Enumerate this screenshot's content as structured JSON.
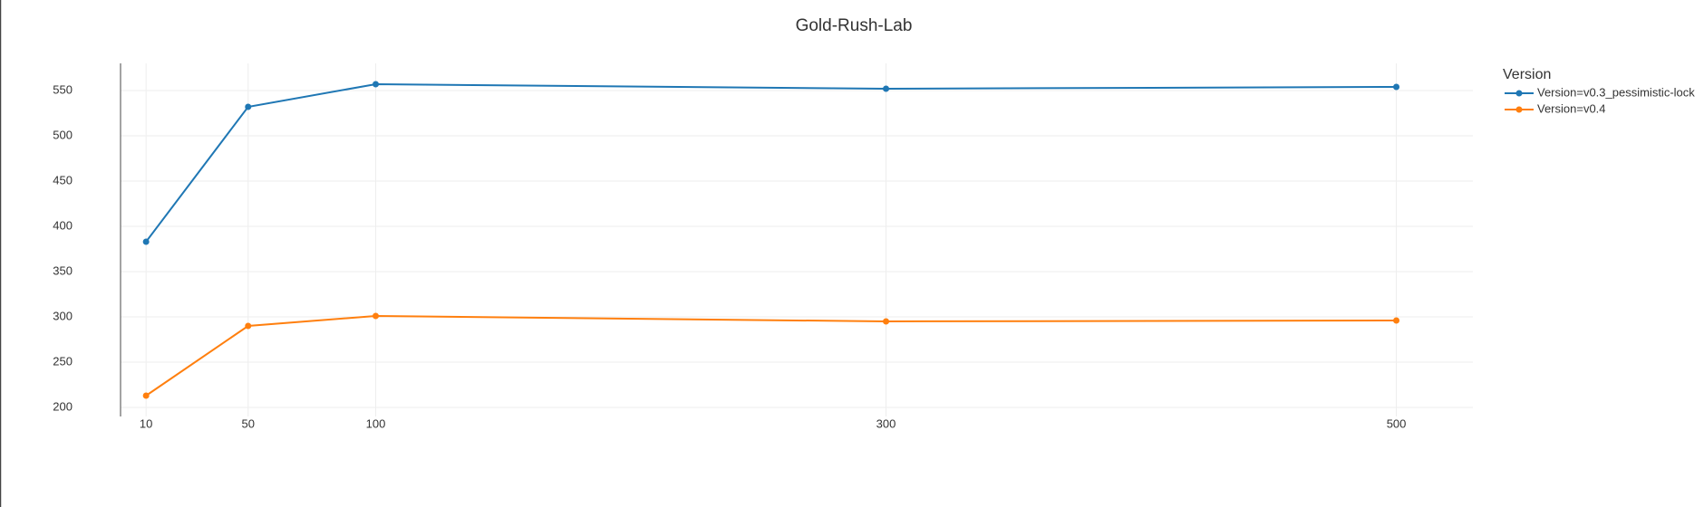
{
  "chart_data": {
    "type": "line",
    "title": "Gold-Rush-Lab",
    "x": [
      10,
      50,
      100,
      300,
      500
    ],
    "series": [
      {
        "name": "Version=v0.3_pessimistic-lock",
        "color": "#1f77b4",
        "values": [
          383,
          532,
          557,
          552,
          554
        ]
      },
      {
        "name": "Version=v0.4",
        "color": "#ff7f0e",
        "values": [
          213,
          290,
          301,
          295,
          296
        ]
      }
    ],
    "legend_title": "Version",
    "legend": "right",
    "xlim": [
      0,
      530
    ],
    "xticks": [
      10,
      50,
      100,
      300,
      500
    ],
    "ylim": [
      190,
      580
    ],
    "yticks": [
      200,
      250,
      300,
      350,
      400,
      450,
      500,
      550
    ],
    "grid": true
  }
}
